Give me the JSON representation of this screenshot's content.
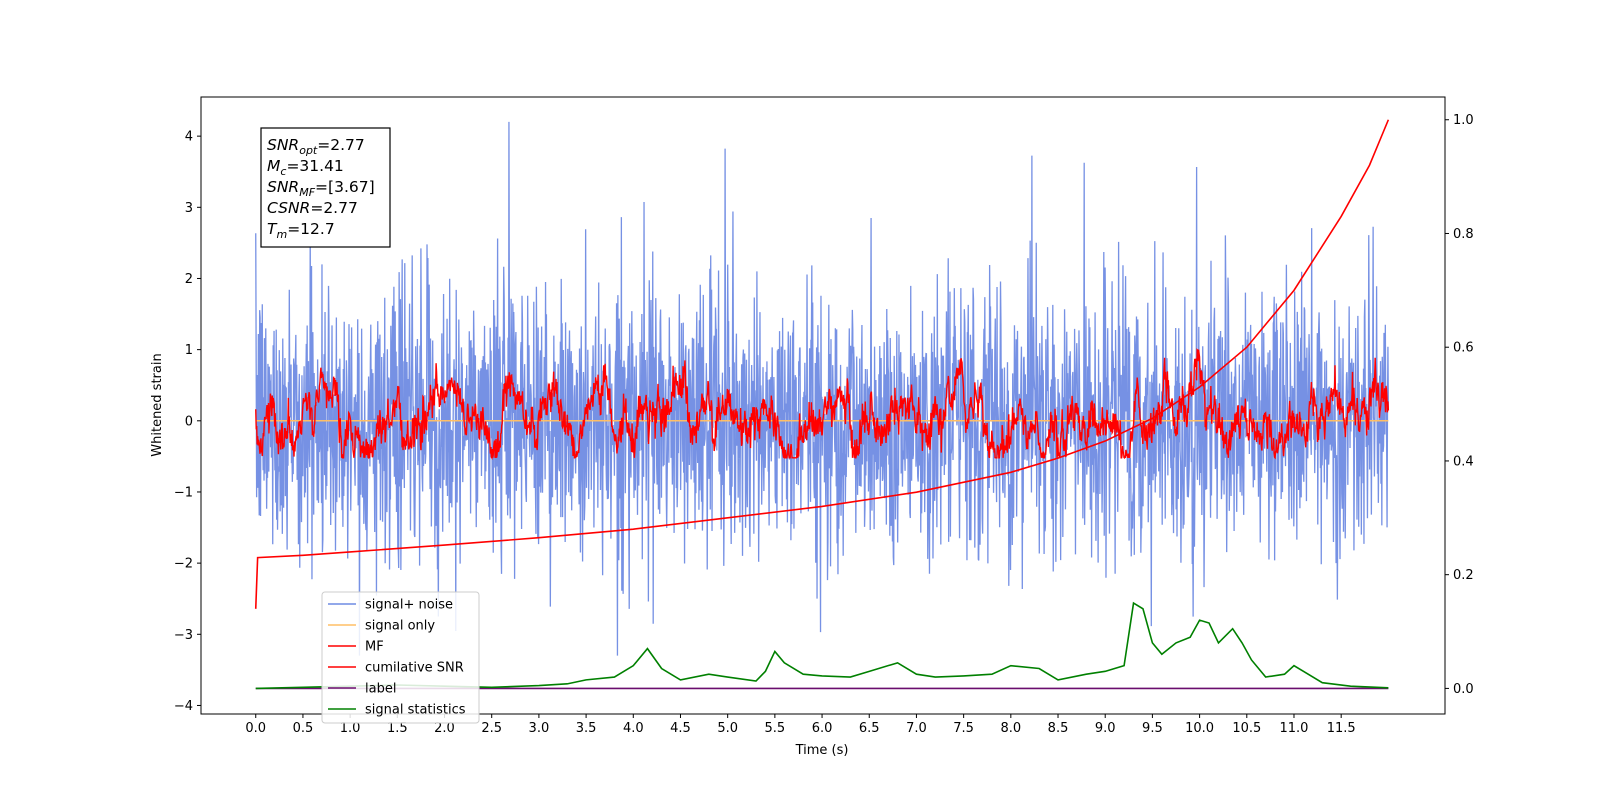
{
  "chart_data": {
    "type": "line",
    "title": "",
    "xlabel": "Time (s)",
    "ylabel": "Whitened strain",
    "xlim": [
      -0.58,
      12.6
    ],
    "ylim": [
      -4.12,
      4.55
    ],
    "y2lim": [
      -0.045,
      1.04
    ],
    "x_ticks": [
      0.0,
      0.5,
      1.0,
      1.5,
      2.0,
      2.5,
      3.0,
      3.5,
      4.0,
      4.5,
      5.0,
      5.5,
      6.0,
      6.5,
      7.0,
      7.5,
      8.0,
      8.5,
      9.0,
      9.5,
      10.0,
      10.5,
      11.0,
      11.5
    ],
    "x_tick_labels": [
      "0.0",
      "0.5",
      "1.0",
      "1.5",
      "2.0",
      "2.5",
      "3.0",
      "3.5",
      "4.0",
      "4.5",
      "5.0",
      "5.5",
      "6.0",
      "6.5",
      "7.0",
      "7.5",
      "8.0",
      "8.5",
      "9.0",
      "9.5",
      "10.0",
      "10.5",
      "11.0",
      "11.5"
    ],
    "y_ticks": [
      4,
      3,
      2,
      1,
      0,
      -1,
      -2,
      -3,
      -4
    ],
    "y_tick_labels": [
      "4",
      "3",
      "2",
      "1",
      "0",
      "−1",
      "−2",
      "−3",
      "−4"
    ],
    "y2_ticks": [
      1.0,
      0.8,
      0.6,
      0.4,
      0.2,
      0.0
    ],
    "y2_tick_labels": [
      "1.0",
      "0.8",
      "0.6",
      "0.4",
      "0.2",
      "0.0"
    ],
    "grid": false,
    "legend_position": "lower-left",
    "annotation_lines": [
      {
        "base": "SNR",
        "sub": "opt",
        "rest": "=2.77"
      },
      {
        "base": "M",
        "sub": "c",
        "rest": "=31.41"
      },
      {
        "base": "SNR",
        "sub": "MF",
        "rest": "=[3.67]"
      },
      {
        "base": "CSNR",
        "sub": "",
        "rest": "=2.77"
      },
      {
        "base": "T",
        "sub": "m",
        "rest": "=12.7"
      }
    ],
    "series": [
      {
        "name": "signal+ noise",
        "color": "#6f8be3",
        "axis": "left",
        "amplitude_range": [
          -3.3,
          4.2
        ],
        "typical_range": [
          -1.5,
          1.8
        ]
      },
      {
        "name": "signal only",
        "color": "#ffbf66",
        "axis": "left",
        "x": [
          0,
          12
        ],
        "y": [
          0,
          0
        ]
      },
      {
        "name": "MF",
        "color": "#ff0000",
        "axis": "left",
        "typical_range": [
          -0.45,
          0.85
        ]
      },
      {
        "name": "cumilative SNR",
        "color": "#ff0000",
        "axis": "right",
        "x": [
          0.0,
          0.02,
          0.5,
          1,
          2,
          3,
          4,
          5,
          6,
          7,
          8,
          8.5,
          9,
          9.5,
          10,
          10.5,
          11,
          11.5,
          11.8,
          11.95,
          12.0
        ],
        "y": [
          0.14,
          0.23,
          0.234,
          0.24,
          0.252,
          0.265,
          0.28,
          0.3,
          0.32,
          0.345,
          0.38,
          0.405,
          0.435,
          0.475,
          0.53,
          0.6,
          0.7,
          0.83,
          0.92,
          0.98,
          1.0
        ]
      },
      {
        "name": "label",
        "color": "#6a0d6e",
        "axis": "right",
        "x": [
          0,
          12
        ],
        "y": [
          0.0,
          0.0
        ]
      },
      {
        "name": "signal statistics",
        "color": "#008000",
        "axis": "right",
        "x": [
          0.0,
          0.5,
          1.0,
          1.5,
          2.0,
          2.5,
          3.0,
          3.3,
          3.5,
          3.8,
          4.0,
          4.15,
          4.3,
          4.5,
          4.8,
          5.0,
          5.3,
          5.4,
          5.5,
          5.6,
          5.8,
          6.0,
          6.3,
          6.5,
          6.8,
          7.0,
          7.2,
          7.5,
          7.8,
          8.0,
          8.3,
          8.5,
          8.8,
          9.0,
          9.2,
          9.3,
          9.4,
          9.5,
          9.6,
          9.75,
          9.9,
          10.0,
          10.1,
          10.2,
          10.35,
          10.45,
          10.55,
          10.7,
          10.9,
          11.0,
          11.1,
          11.3,
          11.6,
          12.0
        ],
        "y": [
          0.0,
          0.002,
          0.004,
          0.006,
          0.004,
          0.002,
          0.005,
          0.008,
          0.015,
          0.02,
          0.04,
          0.07,
          0.035,
          0.015,
          0.025,
          0.02,
          0.013,
          0.03,
          0.065,
          0.045,
          0.025,
          0.022,
          0.02,
          0.03,
          0.045,
          0.025,
          0.02,
          0.022,
          0.025,
          0.04,
          0.035,
          0.015,
          0.025,
          0.03,
          0.04,
          0.15,
          0.14,
          0.08,
          0.06,
          0.08,
          0.09,
          0.12,
          0.115,
          0.08,
          0.105,
          0.08,
          0.05,
          0.02,
          0.025,
          0.04,
          0.03,
          0.01,
          0.004,
          0.001
        ]
      }
    ]
  }
}
